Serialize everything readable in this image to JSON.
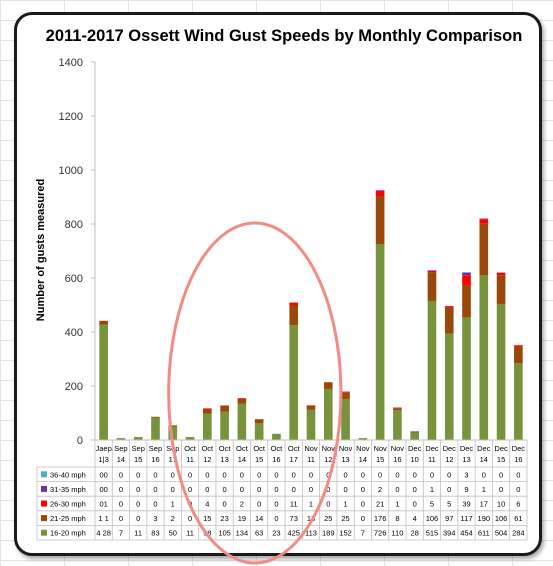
{
  "chart_data": {
    "type": "bar",
    "stacked": true,
    "title": "2011-2017 Ossett Wind Gust Speeds by Monthly Comparison",
    "ylabel": "Number of gusts measured",
    "ylim": [
      0,
      1400
    ],
    "yticks": [
      0,
      200,
      400,
      600,
      800,
      1000,
      1200,
      1400
    ],
    "grid": false,
    "legend": "data table below chart",
    "categories": [
      {
        "m": "Jaep",
        "y": "1|3"
      },
      {
        "m": "Sep",
        "y": "14"
      },
      {
        "m": "Sep",
        "y": "15"
      },
      {
        "m": "Sep",
        "y": "16"
      },
      {
        "m": "Sep",
        "y": "17"
      },
      {
        "m": "Oct",
        "y": "11"
      },
      {
        "m": "Oct",
        "y": "12"
      },
      {
        "m": "Oct",
        "y": "13"
      },
      {
        "m": "Oct",
        "y": "14"
      },
      {
        "m": "Oct",
        "y": "15"
      },
      {
        "m": "Oct",
        "y": "16"
      },
      {
        "m": "Oct",
        "y": "17"
      },
      {
        "m": "Nov",
        "y": "11"
      },
      {
        "m": "Nov",
        "y": "12"
      },
      {
        "m": "Nov",
        "y": "13"
      },
      {
        "m": "Nov",
        "y": "14"
      },
      {
        "m": "Nov",
        "y": "15"
      },
      {
        "m": "Nov",
        "y": "16"
      },
      {
        "m": "Dec",
        "y": "10"
      },
      {
        "m": "Dec",
        "y": "11"
      },
      {
        "m": "Dec",
        "y": "12"
      },
      {
        "m": "Dec",
        "y": "13"
      },
      {
        "m": "Dec",
        "y": "14"
      },
      {
        "m": "Dec",
        "y": "15"
      },
      {
        "m": "Dec",
        "y": "16"
      }
    ],
    "series": [
      {
        "name": "16-20 mph",
        "color": "#77933c",
        "values": [
          428,
          7,
          11,
          83,
          50,
          11,
          98,
          105,
          134,
          63,
          23,
          425,
          113,
          189,
          152,
          7,
          726,
          110,
          28,
          515,
          394,
          454,
          611,
          504,
          284
        ],
        "labels": [
          "4 28",
          "7",
          "11",
          "83",
          "50",
          "11",
          "98",
          "105",
          "134",
          "63",
          "23",
          "425",
          "113",
          "189",
          "152",
          "7",
          "726",
          "110",
          "28",
          "515",
          "394",
          "454",
          "611",
          "504",
          "284"
        ]
      },
      {
        "name": "21-25 mph",
        "color": "#984807",
        "values": [
          11,
          0,
          0,
          3,
          2,
          0,
          15,
          23,
          19,
          14,
          0,
          73,
          13,
          25,
          25,
          0,
          176,
          8,
          4,
          106,
          97,
          117,
          190,
          106,
          61
        ],
        "labels": [
          "1 1",
          "0",
          "0",
          "3",
          "2",
          "0",
          "15",
          "23",
          "19",
          "14",
          "0",
          "73",
          "13",
          "25",
          "25",
          "0",
          "176",
          "8",
          "4",
          "106",
          "97",
          "117",
          "190",
          "106",
          "61"
        ]
      },
      {
        "name": "26-30 mph",
        "color": "#ff0000",
        "values": [
          1,
          0,
          0,
          0,
          1,
          0,
          4,
          0,
          2,
          0,
          0,
          11,
          1,
          0,
          1,
          0,
          21,
          1,
          0,
          5,
          5,
          39,
          17,
          10,
          6
        ],
        "labels": [
          "01",
          "0",
          "0",
          "0",
          "1",
          "0",
          "4",
          "0",
          "2",
          "0",
          "0",
          "11",
          "1",
          "0",
          "1",
          "0",
          "21",
          "1",
          "0",
          "5",
          "5",
          "39",
          "17",
          "10",
          "6"
        ]
      },
      {
        "name": "31-35 mph",
        "color": "#7030a0",
        "values": [
          0,
          0,
          0,
          0,
          0,
          0,
          0,
          0,
          0,
          0,
          0,
          0,
          0,
          0,
          0,
          0,
          2,
          0,
          0,
          1,
          0,
          9,
          1,
          0,
          0
        ],
        "labels": [
          "00",
          "0",
          "0",
          "0",
          "0",
          "0",
          "0",
          "0",
          "0",
          "0",
          "0",
          "0",
          "0",
          "0",
          "0",
          "0",
          "2",
          "0",
          "0",
          "1",
          "0",
          "9",
          "1",
          "0",
          "0"
        ]
      },
      {
        "name": "36-40 mph",
        "color": "#4bacc6",
        "values": [
          0,
          0,
          0,
          0,
          0,
          0,
          0,
          0,
          0,
          0,
          0,
          0,
          0,
          0,
          0,
          0,
          0,
          0,
          0,
          0,
          0,
          3,
          0,
          0,
          0
        ],
        "labels": [
          "00",
          "0",
          "0",
          "0",
          "0",
          "0",
          "0",
          "0",
          "0",
          "0",
          "0",
          "0",
          "0",
          "0",
          "0",
          "0",
          "0",
          "0",
          "0",
          "0",
          "0",
          "3",
          "0",
          "0",
          "0"
        ]
      }
    ],
    "annotation": {
      "shape": "ellipse",
      "color": "#f28b82",
      "covers": "Oct 12 to Nov 12"
    }
  }
}
